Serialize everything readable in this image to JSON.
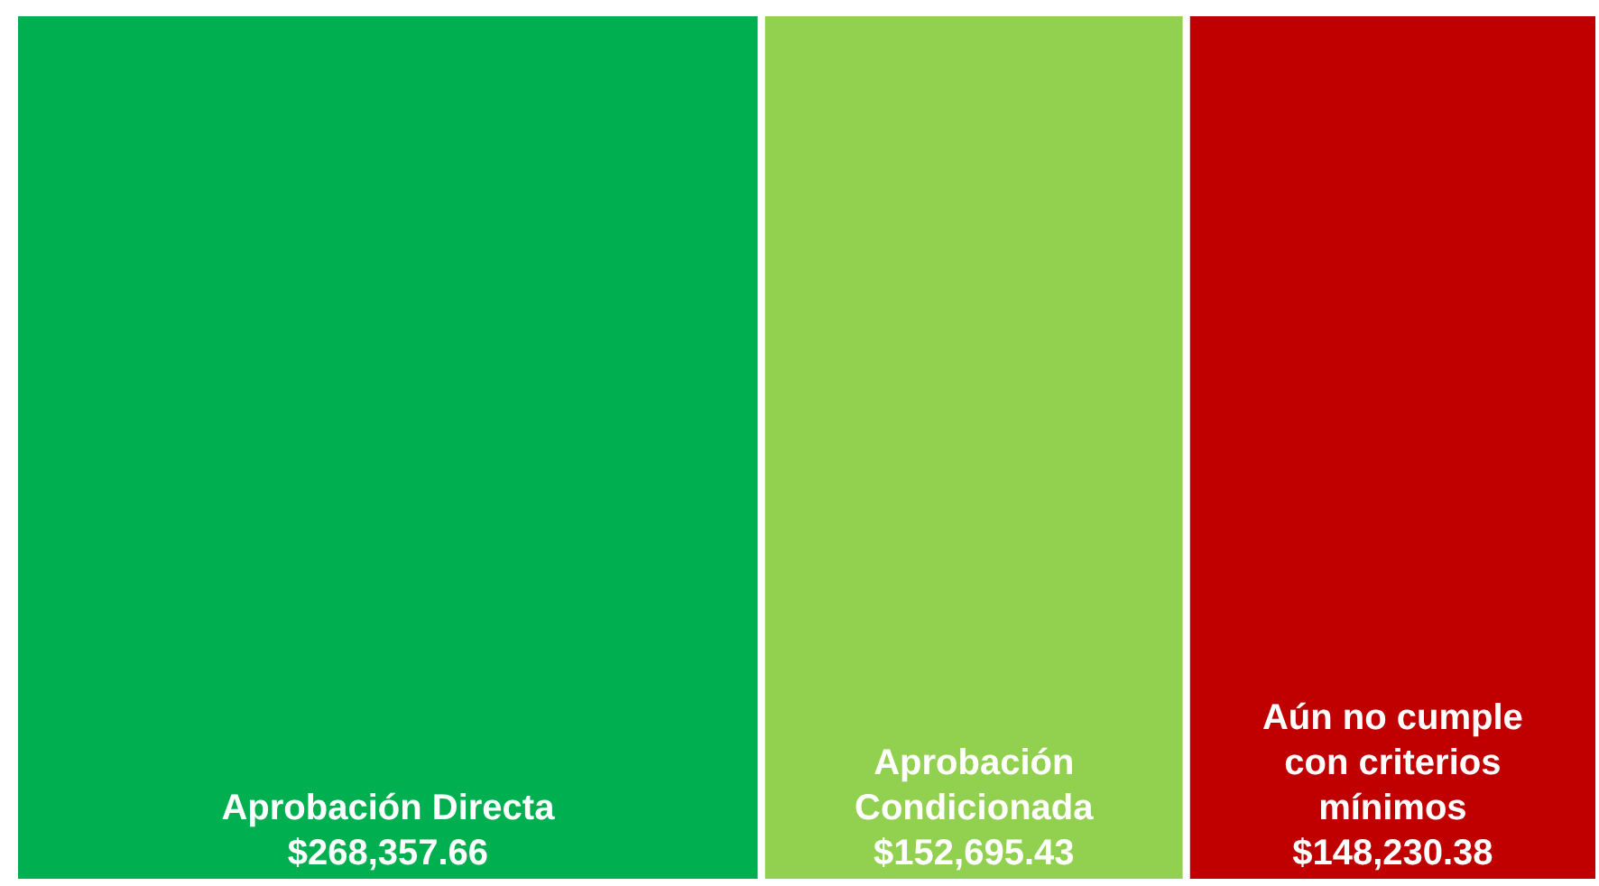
{
  "chart_data": {
    "type": "other",
    "categories": [
      "Aprobación Directa",
      "Aprobación Condicionada",
      "Aún no cumple con criterios mínimos"
    ],
    "values": [
      268357.66,
      152695.43,
      148230.38
    ],
    "colors": [
      "#00b050",
      "#92d050",
      "#c00000"
    ],
    "value_labels": [
      "$268,357.66",
      "$152,695.43",
      "$148,230.38"
    ]
  }
}
